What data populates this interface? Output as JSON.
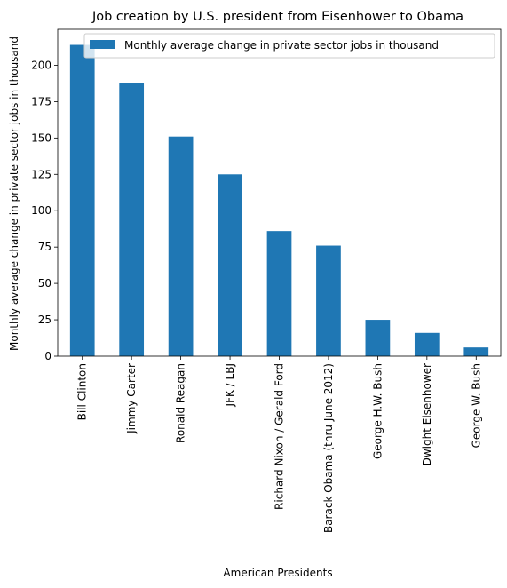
{
  "chart_data": {
    "type": "bar",
    "title": "Job creation by U.S. president from Eisenhower to Obama",
    "xlabel": "American Presidents",
    "ylabel": "Monthly average change in private sector jobs in thousand",
    "categories": [
      "Bill Clinton",
      "Jimmy Carter",
      "Ronald Reagan",
      "JFK / LBJ",
      "Richard Nixon / Gerald Ford",
      "Barack Obama (thru June 2012)",
      "George H.W. Bush",
      "Dwight Eisenhower",
      "George W. Bush"
    ],
    "series": [
      {
        "name": "Monthly average change in private sector jobs in thousand",
        "values": [
          214,
          188,
          151,
          125,
          86,
          76,
          25,
          16,
          6
        ],
        "color": "#1f77b4"
      }
    ],
    "ylim": [
      0,
      224.7
    ],
    "yticks": [
      0,
      25,
      50,
      75,
      100,
      125,
      150,
      175,
      200
    ],
    "grid": false,
    "legend_position": "top-right"
  }
}
